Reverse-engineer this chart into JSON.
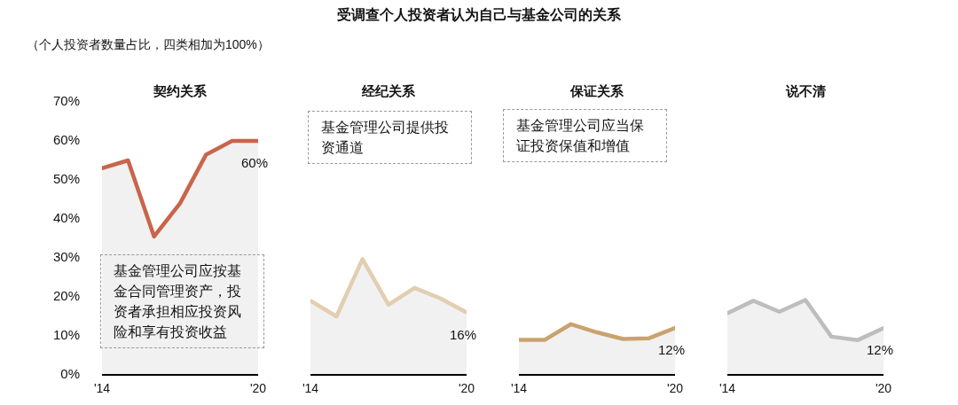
{
  "chart_data": [
    {
      "type": "other",
      "title": "受调查个人投资者认为自己与基金公司的关系",
      "subtitle": "（个人投资者数量占比，四类相加为100%）"
    },
    {
      "type": "area",
      "title": "契约关系",
      "categories": [
        "'14",
        null,
        null,
        null,
        null,
        null,
        "'20"
      ],
      "values": [
        53,
        55,
        35.5,
        44,
        56.5,
        60,
        60
      ],
      "color": "#c8654a",
      "value_labels": [
        null,
        null,
        null,
        null,
        null,
        null,
        "60%"
      ],
      "ylim": [
        0,
        70
      ],
      "yticks": [
        {
          "value": 0,
          "label": "0%"
        },
        {
          "value": 10,
          "label": "10%"
        },
        {
          "value": 20,
          "label": "20%"
        },
        {
          "value": 30,
          "label": "30%"
        },
        {
          "value": 40,
          "label": "40%"
        },
        {
          "value": 50,
          "label": "50%"
        },
        {
          "value": 60,
          "label": "60%"
        },
        {
          "value": 70,
          "label": "70%"
        }
      ],
      "grid": false,
      "annotations": [
        "基金管理公司应按基金合同管理资产，投资者承担相应投资风险和享有投资收益"
      ]
    },
    {
      "type": "area",
      "title": "经纪关系",
      "categories": [
        "'14",
        null,
        null,
        null,
        null,
        null,
        "'20"
      ],
      "values": [
        19,
        15,
        29.7,
        18,
        22.3,
        19.6,
        16
      ],
      "color": "#e2ceb0",
      "value_labels": [
        null,
        null,
        null,
        null,
        null,
        null,
        "16%"
      ],
      "ylim": [
        0,
        70
      ],
      "grid": false,
      "tick_labels": "x",
      "annotations": [
        "基金管理公司提供投资通道"
      ]
    },
    {
      "type": "area",
      "title": "保证关系",
      "categories": [
        "'14",
        null,
        null,
        null,
        null,
        null,
        "'20"
      ],
      "values": [
        9,
        9,
        13,
        10.9,
        9.2,
        9.4,
        12
      ],
      "color": "#c9a26d",
      "value_labels": [
        null,
        null,
        null,
        null,
        null,
        null,
        "12%"
      ],
      "ylim": [
        0,
        70
      ],
      "grid": false,
      "tick_labels": "x",
      "annotations": [
        "基金管理公司应当保证投资保值和增值"
      ]
    },
    {
      "type": "area",
      "title": "说不清",
      "categories": [
        "'14",
        null,
        null,
        null,
        null,
        null,
        "'20"
      ],
      "values": [
        15.8,
        19,
        16.2,
        19.2,
        9.8,
        8.9,
        12
      ],
      "color": "#bdbdbd",
      "value_labels": [
        null,
        null,
        null,
        null,
        null,
        null,
        "12%"
      ],
      "ylim": [
        0,
        70
      ],
      "grid": false,
      "tick_labels": "x"
    }
  ]
}
